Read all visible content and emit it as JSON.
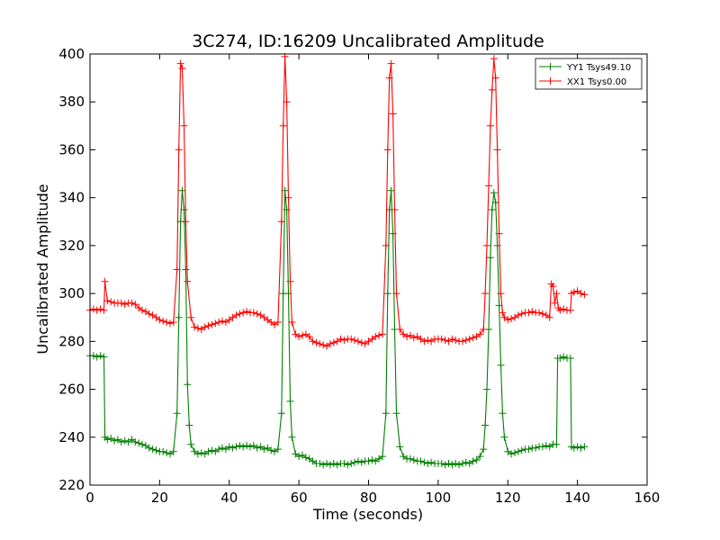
{
  "chart_data": {
    "type": "line",
    "title": "3C274, ID:16209 Uncalibrated Amplitude",
    "xlabel": "Time (seconds)",
    "ylabel": "Uncalibrated Amplitude",
    "xlim": [
      0,
      160
    ],
    "ylim": [
      220,
      400
    ],
    "xticks": [
      0,
      20,
      40,
      60,
      80,
      100,
      120,
      140,
      160
    ],
    "yticks": [
      220,
      240,
      260,
      280,
      300,
      320,
      340,
      360,
      380,
      400
    ],
    "grid": false,
    "legend_position": "top-right",
    "series": [
      {
        "name": "YY1 Tsys49.10",
        "color": "#008000",
        "marker": "+",
        "points": [
          [
            0,
            274
          ],
          [
            1,
            274
          ],
          [
            2,
            273.5
          ],
          [
            3,
            274
          ],
          [
            4,
            273.5
          ],
          [
            4.3,
            240
          ],
          [
            5,
            239
          ],
          [
            6,
            239.5
          ],
          [
            7,
            238.5
          ],
          [
            8,
            239
          ],
          [
            9,
            238
          ],
          [
            10,
            238.5
          ],
          [
            11,
            238
          ],
          [
            12,
            239
          ],
          [
            13,
            238
          ],
          [
            14,
            237.5
          ],
          [
            15,
            237
          ],
          [
            16,
            236.5
          ],
          [
            17,
            235.5
          ],
          [
            18,
            235
          ],
          [
            19,
            234.5
          ],
          [
            20,
            234
          ],
          [
            21,
            234
          ],
          [
            22,
            233.5
          ],
          [
            23,
            233
          ],
          [
            24,
            234
          ],
          [
            25,
            250
          ],
          [
            25.5,
            290
          ],
          [
            26,
            330
          ],
          [
            26.5,
            343
          ],
          [
            27,
            335
          ],
          [
            27.5,
            310
          ],
          [
            28,
            262
          ],
          [
            28.5,
            245
          ],
          [
            29,
            237
          ],
          [
            30,
            234
          ],
          [
            31,
            233
          ],
          [
            32,
            233.5
          ],
          [
            33,
            233
          ],
          [
            34,
            234
          ],
          [
            35,
            234.5
          ],
          [
            36,
            234
          ],
          [
            37,
            235
          ],
          [
            38,
            235.5
          ],
          [
            39,
            235
          ],
          [
            40,
            236
          ],
          [
            41,
            235.5
          ],
          [
            42,
            236
          ],
          [
            43,
            236.5
          ],
          [
            44,
            236
          ],
          [
            45,
            236.5
          ],
          [
            46,
            236
          ],
          [
            47,
            236.5
          ],
          [
            48,
            235.5
          ],
          [
            49,
            236
          ],
          [
            50,
            235
          ],
          [
            51,
            235.5
          ],
          [
            52,
            234.5
          ],
          [
            53,
            234
          ],
          [
            54,
            235
          ],
          [
            55,
            250
          ],
          [
            55.5,
            300
          ],
          [
            56,
            343
          ],
          [
            56.5,
            335
          ],
          [
            57,
            300
          ],
          [
            57.5,
            255
          ],
          [
            58,
            240
          ],
          [
            59,
            233
          ],
          [
            60,
            232
          ],
          [
            61,
            232.5
          ],
          [
            62,
            231.5
          ],
          [
            63,
            231
          ],
          [
            64,
            230
          ],
          [
            65,
            229
          ],
          [
            66,
            229
          ],
          [
            67,
            228.5
          ],
          [
            68,
            229
          ],
          [
            69,
            228.5
          ],
          [
            70,
            229
          ],
          [
            71,
            228.5
          ],
          [
            72,
            229
          ],
          [
            73,
            229
          ],
          [
            74,
            228.5
          ],
          [
            75,
            229
          ],
          [
            76,
            229.5
          ],
          [
            77,
            230
          ],
          [
            78,
            229.5
          ],
          [
            79,
            230
          ],
          [
            80,
            230
          ],
          [
            81,
            230.5
          ],
          [
            82,
            230
          ],
          [
            83,
            231
          ],
          [
            84,
            232
          ],
          [
            85,
            250
          ],
          [
            85.5,
            300
          ],
          [
            86,
            335
          ],
          [
            86.5,
            343
          ],
          [
            87,
            325
          ],
          [
            87.5,
            285
          ],
          [
            88,
            250
          ],
          [
            89,
            236
          ],
          [
            90,
            232
          ],
          [
            91,
            231
          ],
          [
            92,
            231
          ],
          [
            93,
            230.5
          ],
          [
            94,
            230
          ],
          [
            95,
            230
          ],
          [
            96,
            229.5
          ],
          [
            97,
            229
          ],
          [
            98,
            229.5
          ],
          [
            99,
            229
          ],
          [
            100,
            229
          ],
          [
            101,
            229
          ],
          [
            102,
            228.5
          ],
          [
            103,
            229
          ],
          [
            104,
            228.5
          ],
          [
            105,
            229
          ],
          [
            106,
            228.5
          ],
          [
            107,
            229
          ],
          [
            108,
            229.5
          ],
          [
            109,
            229
          ],
          [
            110,
            230
          ],
          [
            111,
            230.5
          ],
          [
            112,
            232
          ],
          [
            113,
            235
          ],
          [
            113.5,
            245
          ],
          [
            114,
            260
          ],
          [
            114.5,
            285
          ],
          [
            115,
            315
          ],
          [
            115.5,
            335
          ],
          [
            116,
            342
          ],
          [
            116.5,
            338
          ],
          [
            117,
            320
          ],
          [
            117.5,
            295
          ],
          [
            118,
            270
          ],
          [
            118.5,
            250
          ],
          [
            119,
            240
          ],
          [
            120,
            234
          ],
          [
            121,
            233
          ],
          [
            122,
            233.5
          ],
          [
            123,
            234
          ],
          [
            124,
            234.5
          ],
          [
            125,
            235
          ],
          [
            126,
            235
          ],
          [
            127,
            235.5
          ],
          [
            128,
            235.5
          ],
          [
            129,
            236
          ],
          [
            130,
            236
          ],
          [
            131,
            236.5
          ],
          [
            132,
            236
          ],
          [
            133,
            237
          ],
          [
            134,
            237
          ],
          [
            134.3,
            273
          ],
          [
            135,
            273
          ],
          [
            136,
            273.5
          ],
          [
            137,
            273
          ],
          [
            138,
            273
          ],
          [
            138.3,
            236
          ],
          [
            139,
            235.5
          ],
          [
            140,
            236
          ],
          [
            141,
            235.5
          ],
          [
            142,
            236
          ]
        ]
      },
      {
        "name": "XX1 Tsys0.00",
        "color": "#ff0000",
        "marker": "+",
        "points": [
          [
            0,
            293
          ],
          [
            1,
            293.5
          ],
          [
            2,
            293
          ],
          [
            3,
            293.5
          ],
          [
            4,
            293
          ],
          [
            4.3,
            305
          ],
          [
            5,
            297
          ],
          [
            6,
            296.5
          ],
          [
            7,
            296
          ],
          [
            8,
            296
          ],
          [
            9,
            296
          ],
          [
            10,
            295.5
          ],
          [
            11,
            296
          ],
          [
            12,
            296
          ],
          [
            13,
            295.5
          ],
          [
            14,
            294
          ],
          [
            15,
            293
          ],
          [
            16,
            292.5
          ],
          [
            17,
            291.5
          ],
          [
            18,
            291
          ],
          [
            19,
            290
          ],
          [
            20,
            289
          ],
          [
            21,
            288.5
          ],
          [
            22,
            288
          ],
          [
            23,
            287.5
          ],
          [
            24,
            288
          ],
          [
            25,
            310
          ],
          [
            25.5,
            360
          ],
          [
            26,
            396
          ],
          [
            26.5,
            394
          ],
          [
            27,
            370
          ],
          [
            27.5,
            330
          ],
          [
            28,
            305
          ],
          [
            29,
            290
          ],
          [
            30,
            286
          ],
          [
            31,
            285.5
          ],
          [
            32,
            285
          ],
          [
            33,
            286
          ],
          [
            34,
            286.5
          ],
          [
            35,
            287
          ],
          [
            36,
            287.5
          ],
          [
            37,
            288
          ],
          [
            38,
            288.5
          ],
          [
            39,
            288
          ],
          [
            40,
            289
          ],
          [
            41,
            290
          ],
          [
            42,
            291
          ],
          [
            43,
            291.5
          ],
          [
            44,
            292
          ],
          [
            45,
            292.5
          ],
          [
            46,
            292
          ],
          [
            47,
            292
          ],
          [
            48,
            291.5
          ],
          [
            49,
            291
          ],
          [
            50,
            290
          ],
          [
            51,
            289
          ],
          [
            52,
            288
          ],
          [
            53,
            287
          ],
          [
            54,
            288
          ],
          [
            55,
            330
          ],
          [
            55.5,
            370
          ],
          [
            56,
            399
          ],
          [
            56.5,
            380
          ],
          [
            57,
            340
          ],
          [
            57.5,
            305
          ],
          [
            58,
            288
          ],
          [
            59,
            283
          ],
          [
            60,
            282
          ],
          [
            61,
            282.5
          ],
          [
            62,
            283
          ],
          [
            63,
            282
          ],
          [
            64,
            280
          ],
          [
            65,
            279.5
          ],
          [
            66,
            279
          ],
          [
            67,
            278.5
          ],
          [
            68,
            278
          ],
          [
            69,
            279
          ],
          [
            70,
            279.5
          ],
          [
            71,
            280
          ],
          [
            72,
            281
          ],
          [
            73,
            280.5
          ],
          [
            74,
            281
          ],
          [
            75,
            281
          ],
          [
            76,
            280.5
          ],
          [
            77,
            280
          ],
          [
            78,
            279.5
          ],
          [
            79,
            279
          ],
          [
            80,
            280
          ],
          [
            81,
            281
          ],
          [
            82,
            282
          ],
          [
            83,
            282.5
          ],
          [
            84,
            283
          ],
          [
            85,
            320
          ],
          [
            85.5,
            360
          ],
          [
            86,
            390
          ],
          [
            86.5,
            396
          ],
          [
            87,
            375
          ],
          [
            87.5,
            335
          ],
          [
            88,
            300
          ],
          [
            89,
            285
          ],
          [
            90,
            283
          ],
          [
            91,
            282
          ],
          [
            92,
            282.5
          ],
          [
            93,
            281.5
          ],
          [
            94,
            282
          ],
          [
            95,
            281
          ],
          [
            96,
            280
          ],
          [
            97,
            280.5
          ],
          [
            98,
            280
          ],
          [
            99,
            281
          ],
          [
            100,
            281
          ],
          [
            101,
            281
          ],
          [
            102,
            280.5
          ],
          [
            103,
            280
          ],
          [
            104,
            281
          ],
          [
            105,
            280.5
          ],
          [
            106,
            280
          ],
          [
            107,
            280
          ],
          [
            108,
            280.5
          ],
          [
            109,
            281
          ],
          [
            110,
            281.5
          ],
          [
            111,
            282
          ],
          [
            112,
            283
          ],
          [
            113,
            285
          ],
          [
            113.5,
            300
          ],
          [
            114,
            320
          ],
          [
            114.5,
            345
          ],
          [
            115,
            370
          ],
          [
            115.5,
            385
          ],
          [
            116,
            398
          ],
          [
            116.5,
            390
          ],
          [
            117,
            360
          ],
          [
            117.5,
            325
          ],
          [
            118,
            300
          ],
          [
            118.5,
            292
          ],
          [
            119,
            290
          ],
          [
            120,
            289
          ],
          [
            121,
            289.5
          ],
          [
            122,
            290
          ],
          [
            123,
            291
          ],
          [
            124,
            291.5
          ],
          [
            125,
            292
          ],
          [
            126,
            292
          ],
          [
            127,
            292.5
          ],
          [
            128,
            292
          ],
          [
            129,
            292
          ],
          [
            130,
            291.5
          ],
          [
            131,
            291
          ],
          [
            132,
            290
          ],
          [
            132.5,
            304
          ],
          [
            133,
            303
          ],
          [
            133.5,
            296
          ],
          [
            134,
            300
          ],
          [
            134.5,
            294
          ],
          [
            135,
            293
          ],
          [
            136,
            293.5
          ],
          [
            137,
            293
          ],
          [
            138,
            293
          ],
          [
            138.3,
            300
          ],
          [
            139,
            300.5
          ],
          [
            140,
            301
          ],
          [
            141,
            300
          ],
          [
            142,
            299.5
          ]
        ]
      }
    ]
  }
}
